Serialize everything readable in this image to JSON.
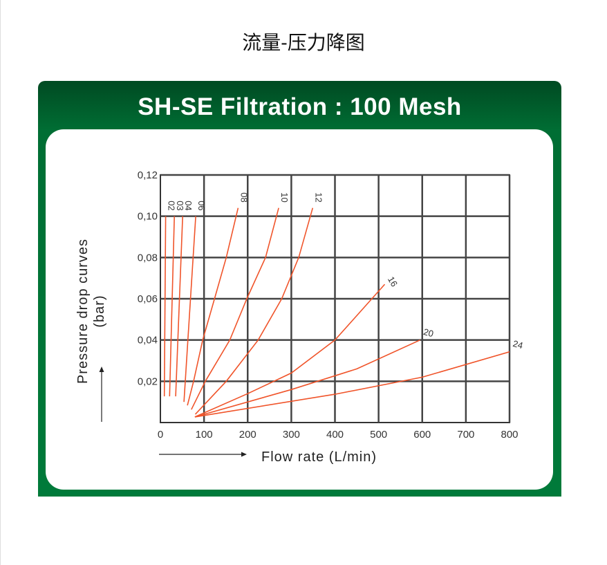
{
  "page_title": "流量-压力降图",
  "chart_data": {
    "type": "line",
    "title": "SH-SE Filtration : 100 Mesh",
    "xlabel": "Flow rate (L/min)",
    "ylabel": "Pressure drop curves",
    "ylabel_unit": "(bar)",
    "xlim": [
      0,
      800
    ],
    "ylim": [
      0,
      0.12
    ],
    "xticks": [
      "0",
      "100",
      "200",
      "300",
      "400",
      "500",
      "600",
      "700",
      "800"
    ],
    "yticks": [
      "0,02",
      "0,04",
      "0,06",
      "0,08",
      "0,10",
      "0,12"
    ],
    "grid": true,
    "line_color": "#f0542a",
    "series": [
      {
        "name": "02",
        "points": [
          [
            9,
            0.0127
          ],
          [
            12,
            0.1
          ]
        ]
      },
      {
        "name": "03",
        "points": [
          [
            21,
            0.0127
          ],
          [
            32,
            0.1
          ]
        ]
      },
      {
        "name": "04",
        "points": [
          [
            35,
            0.0127
          ],
          [
            51,
            0.1
          ]
        ]
      },
      {
        "name": "06",
        "points": [
          [
            54,
            0.01
          ],
          [
            81,
            0.1
          ]
        ]
      },
      {
        "name": "08",
        "points": [
          [
            62,
            0.0083
          ],
          [
            76,
            0.02
          ],
          [
            97,
            0.04
          ],
          [
            124,
            0.06
          ],
          [
            151,
            0.08
          ],
          [
            178,
            0.104
          ]
        ]
      },
      {
        "name": "10",
        "points": [
          [
            71,
            0.0063
          ],
          [
            103,
            0.02
          ],
          [
            159,
            0.04
          ],
          [
            198,
            0.06
          ],
          [
            241,
            0.08
          ],
          [
            271,
            0.104
          ]
        ]
      },
      {
        "name": "12",
        "points": [
          [
            80,
            0.004
          ],
          [
            151,
            0.02
          ],
          [
            224,
            0.04
          ],
          [
            278,
            0.06
          ],
          [
            317,
            0.08
          ],
          [
            349,
            0.104
          ]
        ]
      },
      {
        "name": "16",
        "points": [
          [
            79,
            0.0027
          ],
          [
            200,
            0.014
          ],
          [
            300,
            0.024
          ],
          [
            400,
            0.04
          ],
          [
            514,
            0.067
          ]
        ]
      },
      {
        "name": "20",
        "points": [
          [
            79,
            0.0027
          ],
          [
            300,
            0.016
          ],
          [
            450,
            0.026
          ],
          [
            595,
            0.04
          ]
        ]
      },
      {
        "name": "24",
        "points": [
          [
            79,
            0.0027
          ],
          [
            400,
            0.0137
          ],
          [
            600,
            0.022
          ],
          [
            800,
            0.0343
          ]
        ]
      }
    ]
  }
}
